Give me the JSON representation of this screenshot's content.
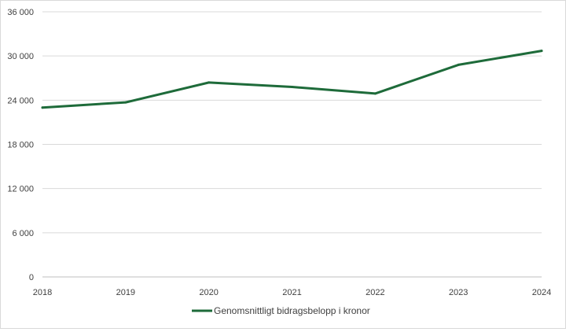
{
  "chart_data": {
    "type": "line",
    "title": "",
    "xlabel": "",
    "ylabel": "",
    "categories": [
      "2018",
      "2019",
      "2020",
      "2021",
      "2022",
      "2023",
      "2024"
    ],
    "y_ticks": [
      "0",
      "6 000",
      "12 000",
      "18 000",
      "24 000",
      "30 000",
      "36 000"
    ],
    "ylim": [
      0,
      36000
    ],
    "y_tick_step": 6000,
    "grid": true,
    "legend_position": "bottom",
    "series": [
      {
        "name": "Genomsnittligt bidragsbelopp i kronor",
        "color": "#1e6b3a",
        "values": [
          23000,
          23700,
          26400,
          25800,
          24900,
          28800,
          30700
        ]
      }
    ]
  }
}
